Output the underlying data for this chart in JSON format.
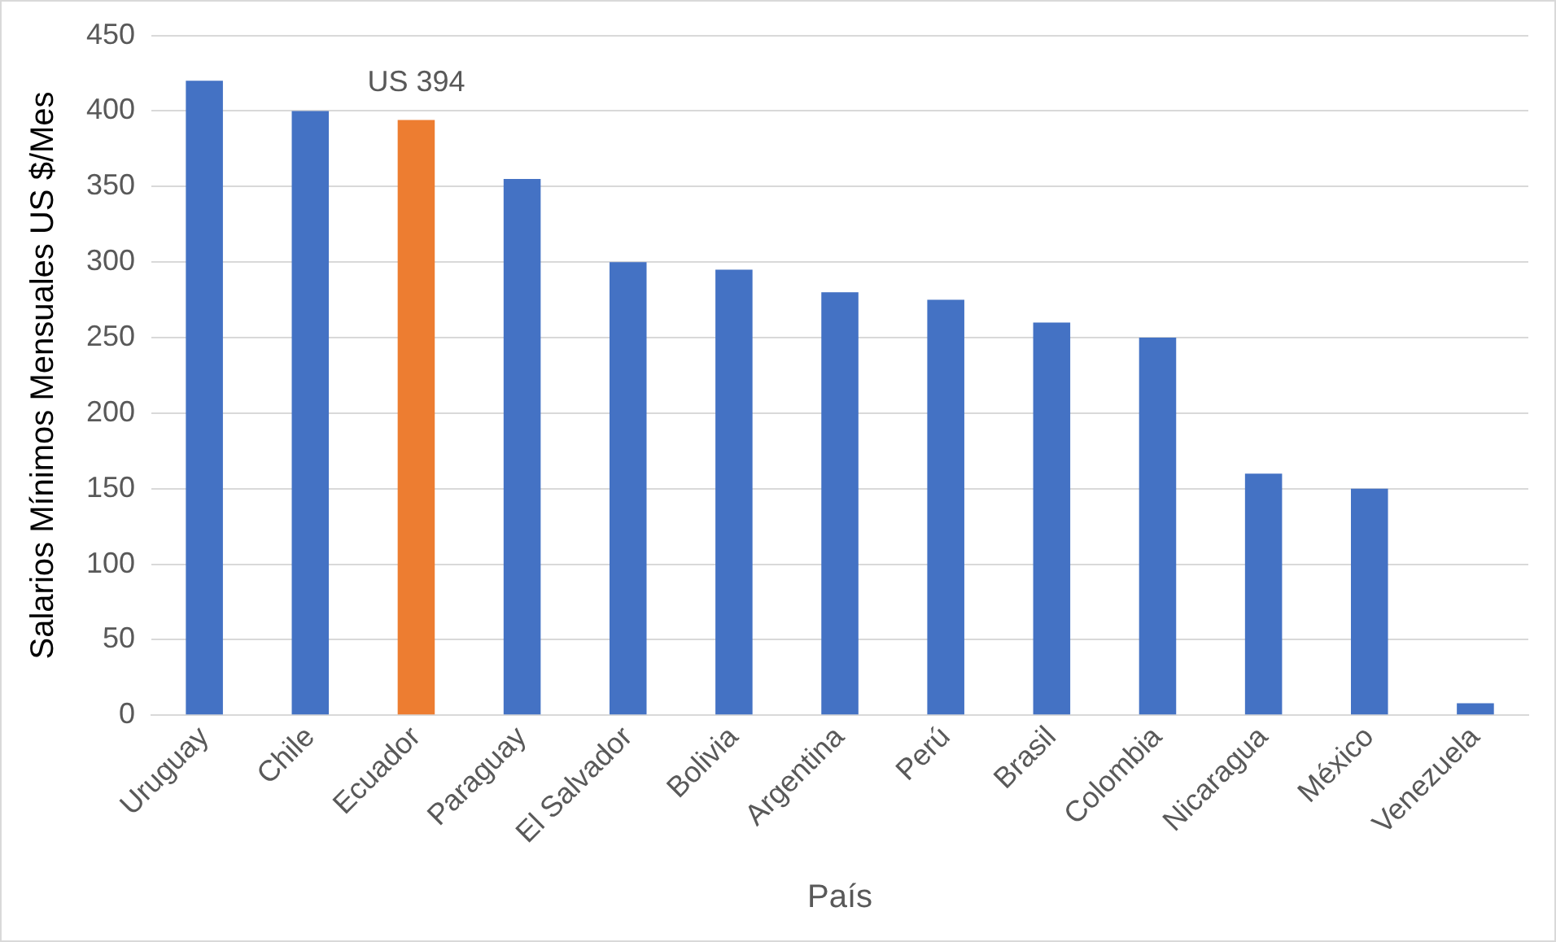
{
  "chart_data": {
    "type": "bar",
    "xlabel": "País",
    "ylabel": "Salarios Mínimos Mensuales US $/Mes",
    "categories": [
      "Uruguay",
      "Chile",
      "Ecuador",
      "Paraguay",
      "El Salvador",
      "Bolivia",
      "Argentina",
      "Perú",
      "Brasil",
      "Colombia",
      "Nicaragua",
      "México",
      "Venezuela"
    ],
    "values": [
      420,
      400,
      394,
      355,
      300,
      295,
      280,
      275,
      260,
      250,
      160,
      150,
      8
    ],
    "colors": [
      "#4472c4",
      "#4472c4",
      "#ed7d31",
      "#4472c4",
      "#4472c4",
      "#4472c4",
      "#4472c4",
      "#4472c4",
      "#4472c4",
      "#4472c4",
      "#4472c4",
      "#4472c4",
      "#4472c4"
    ],
    "ylim": [
      0,
      450
    ],
    "yticks": [
      0,
      50,
      100,
      150,
      200,
      250,
      300,
      350,
      400,
      450
    ],
    "grid": "y",
    "legend": false,
    "annotations": [
      {
        "text": "US 394",
        "x": "Ecuador",
        "y": 394
      }
    ]
  }
}
